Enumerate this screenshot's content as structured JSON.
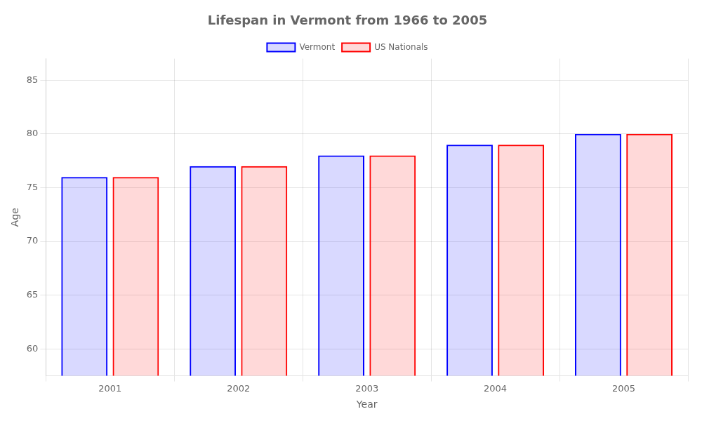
{
  "chart_data": {
    "type": "bar",
    "title": "Lifespan in Vermont from 1966 to 2005",
    "x_label": "Year",
    "y_label": "Age",
    "categories": [
      "2001",
      "2002",
      "2003",
      "2004",
      "2005"
    ],
    "series": [
      {
        "name": "Vermont",
        "color": "#0000ff",
        "values": [
          76,
          77,
          78,
          79,
          80
        ]
      },
      {
        "name": "US Nationals",
        "color": "#ff0000",
        "values": [
          76,
          77,
          78,
          79,
          80
        ]
      }
    ],
    "ylim": [
      57.5,
      87
    ],
    "yticks": [
      60,
      65,
      70,
      75,
      80,
      85
    ],
    "grid": true,
    "legend": "top"
  }
}
